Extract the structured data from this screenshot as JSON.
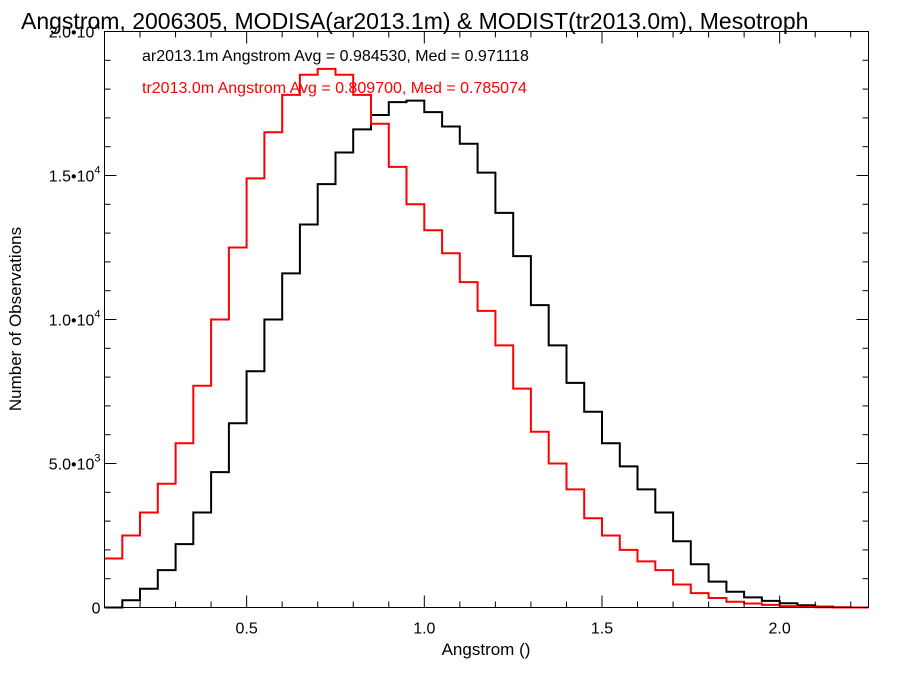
{
  "chart_data": {
    "type": "line",
    "title": "Angstrom, 2006305, MODISA(ar2013.1m) & MODIST(tr2013.0m), Mesotroph",
    "xlabel": "Angstrom ()",
    "ylabel": "Number of Observations",
    "xlim": [
      0.1,
      2.25
    ],
    "ylim": [
      0,
      20000
    ],
    "xticks": [
      {
        "value": 0.5,
        "label": "0.5"
      },
      {
        "value": 1.0,
        "label": "1.0"
      },
      {
        "value": 1.5,
        "label": "1.5"
      },
      {
        "value": 2.0,
        "label": "2.0"
      }
    ],
    "yticks": [
      {
        "value": 0,
        "label": "0",
        "exp": ""
      },
      {
        "value": 5000,
        "label": "5.0•10",
        "exp": "3"
      },
      {
        "value": 10000,
        "label": "1.0•10",
        "exp": "4"
      },
      {
        "value": 15000,
        "label": "1.5•10",
        "exp": "4"
      },
      {
        "value": 20000,
        "label": "2.0•10",
        "exp": "4"
      }
    ],
    "grid": false,
    "step": true,
    "annotations": [
      {
        "text": "ar2013.1m Angstrom Avg = 0.984530, Med = 0.971118",
        "color": "#000000"
      },
      {
        "text": "tr2013.0m Angstrom Avg = 0.809700, Med = 0.785074",
        "color": "#ff0000"
      }
    ],
    "series": [
      {
        "color": "#000000",
        "x": [
          0.1,
          0.15,
          0.2,
          0.25,
          0.3,
          0.35,
          0.4,
          0.45,
          0.5,
          0.55,
          0.6,
          0.65,
          0.7,
          0.75,
          0.8,
          0.85,
          0.9,
          0.95,
          1.0,
          1.05,
          1.1,
          1.15,
          1.2,
          1.25,
          1.3,
          1.35,
          1.4,
          1.45,
          1.5,
          1.55,
          1.6,
          1.65,
          1.7,
          1.75,
          1.8,
          1.85,
          1.9,
          1.95,
          2.0,
          2.05,
          2.1,
          2.15,
          2.2,
          2.25
        ],
        "y": [
          0,
          250,
          650,
          1300,
          2200,
          3300,
          4700,
          6400,
          8200,
          10000,
          11600,
          13300,
          14700,
          15800,
          16600,
          17100,
          17550,
          17600,
          17200,
          16700,
          16100,
          15100,
          13700,
          12200,
          10500,
          9100,
          7800,
          6800,
          5700,
          4900,
          4100,
          3300,
          2300,
          1500,
          900,
          550,
          350,
          230,
          150,
          80,
          30,
          10,
          0,
          0
        ]
      },
      {
        "color": "#ff0000",
        "x": [
          0.1,
          0.15,
          0.2,
          0.25,
          0.3,
          0.35,
          0.4,
          0.45,
          0.5,
          0.55,
          0.6,
          0.65,
          0.7,
          0.75,
          0.8,
          0.85,
          0.9,
          0.95,
          1.0,
          1.05,
          1.1,
          1.15,
          1.2,
          1.25,
          1.3,
          1.35,
          1.4,
          1.45,
          1.5,
          1.55,
          1.6,
          1.65,
          1.7,
          1.75,
          1.8,
          1.85,
          1.9,
          1.95,
          2.0,
          2.05,
          2.1,
          2.15,
          2.2,
          2.25
        ],
        "y": [
          1700,
          2500,
          3300,
          4300,
          5700,
          7700,
          10000,
          12500,
          14900,
          16500,
          17800,
          18500,
          18700,
          18500,
          17800,
          16800,
          15300,
          14000,
          13100,
          12300,
          11300,
          10300,
          9100,
          7600,
          6100,
          5000,
          4100,
          3100,
          2500,
          2000,
          1600,
          1300,
          800,
          500,
          330,
          200,
          140,
          90,
          50,
          20,
          10,
          0,
          0,
          0
        ]
      }
    ]
  }
}
